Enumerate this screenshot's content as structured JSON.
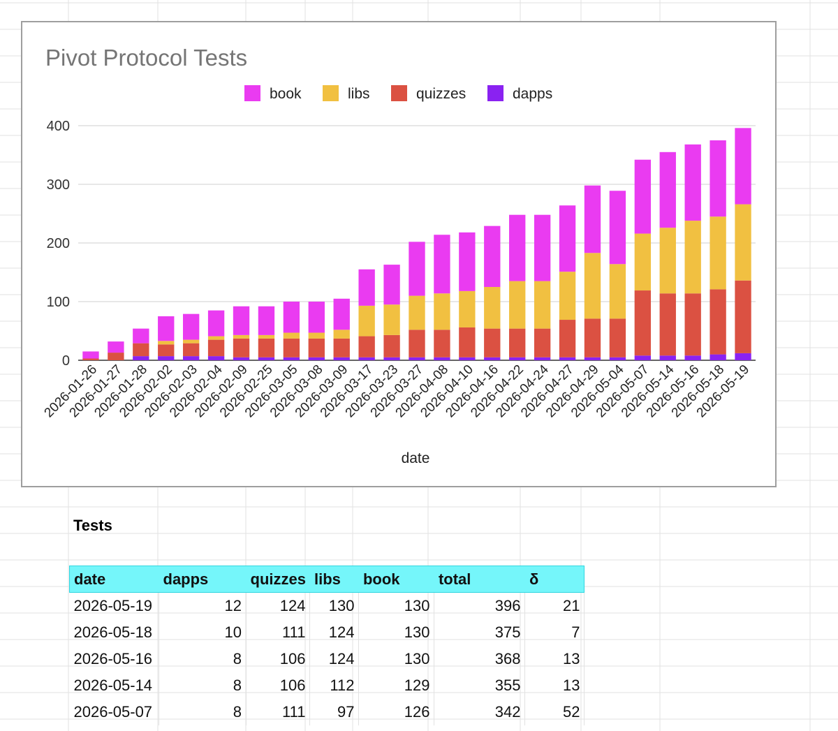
{
  "colors": {
    "book": "#ea3bf1",
    "libs": "#f1c041",
    "quizzes": "#db5142",
    "dapps": "#8a22f1",
    "header_bg": "#75f6fa"
  },
  "chart_data": {
    "type": "bar",
    "stacked": true,
    "title": "Pivot Protocol Tests",
    "xlabel": "date",
    "ylabel": "",
    "ylim": [
      0,
      400
    ],
    "yticks": [
      0,
      100,
      200,
      300,
      400
    ],
    "grid": true,
    "legend_position": "top",
    "categories": [
      "2026-01-26",
      "2026-01-27",
      "2026-01-28",
      "2026-02-02",
      "2026-02-03",
      "2026-02-04",
      "2026-02-09",
      "2026-02-25",
      "2026-03-05",
      "2026-03-08",
      "2026-03-09",
      "2026-03-17",
      "2026-03-23",
      "2026-03-27",
      "2026-04-08",
      "2026-04-10",
      "2026-04-16",
      "2026-04-22",
      "2026-04-24",
      "2026-04-27",
      "2026-04-29",
      "2026-05-04",
      "2026-05-07",
      "2026-05-14",
      "2026-05-16",
      "2026-05-18",
      "2026-05-19"
    ],
    "series": [
      {
        "name": "dapps",
        "color": "#8a22f1",
        "values": [
          0,
          0,
          7,
          7,
          7,
          7,
          5,
          5,
          5,
          5,
          5,
          5,
          5,
          5,
          5,
          5,
          5,
          5,
          5,
          5,
          5,
          5,
          8,
          8,
          8,
          10,
          12
        ]
      },
      {
        "name": "quizzes",
        "color": "#db5142",
        "values": [
          3,
          13,
          22,
          20,
          22,
          28,
          32,
          32,
          32,
          32,
          32,
          36,
          38,
          47,
          47,
          51,
          49,
          49,
          49,
          64,
          66,
          66,
          111,
          106,
          106,
          111,
          124
        ]
      },
      {
        "name": "libs",
        "color": "#f1c041",
        "values": [
          0,
          0,
          0,
          6,
          6,
          6,
          6,
          6,
          10,
          10,
          15,
          52,
          52,
          58,
          62,
          62,
          71,
          81,
          81,
          82,
          112,
          93,
          97,
          112,
          124,
          124,
          130
        ]
      },
      {
        "name": "book",
        "color": "#ea3bf1",
        "values": [
          12,
          19,
          25,
          42,
          44,
          44,
          49,
          49,
          53,
          53,
          53,
          62,
          68,
          92,
          100,
          100,
          104,
          113,
          113,
          113,
          115,
          125,
          126,
          129,
          130,
          130,
          130
        ]
      }
    ]
  },
  "legend_order": [
    "book",
    "libs",
    "quizzes",
    "dapps"
  ],
  "table": {
    "title": "Tests",
    "headers": [
      "date",
      "dapps",
      "quizzes",
      "libs",
      "book",
      "total",
      "δ"
    ],
    "rows": [
      [
        "2026-05-19",
        "12",
        "124",
        "130",
        "130",
        "396",
        "21"
      ],
      [
        "2026-05-18",
        "10",
        "111",
        "124",
        "130",
        "375",
        "7"
      ],
      [
        "2026-05-16",
        "8",
        "106",
        "124",
        "130",
        "368",
        "13"
      ],
      [
        "2026-05-14",
        "8",
        "106",
        "112",
        "129",
        "355",
        "13"
      ],
      [
        "2026-05-07",
        "8",
        "111",
        "97",
        "126",
        "342",
        "52"
      ]
    ]
  }
}
